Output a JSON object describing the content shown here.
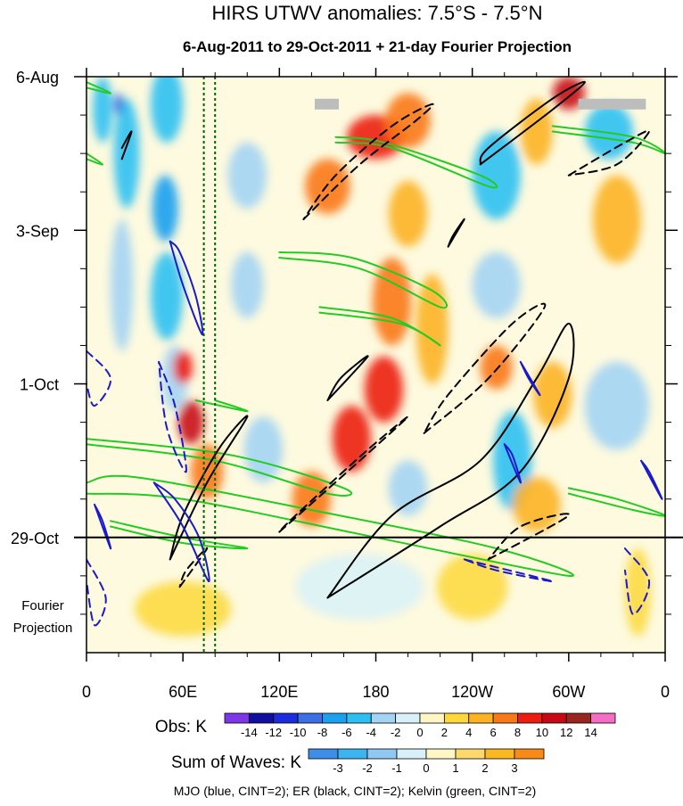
{
  "chart_data": {
    "type": "heatmap",
    "title": "HIRS UTWV anomalies: 7.5°S - 7.5°N",
    "subtitle": "6-Aug-2011 to 29-Oct-2011 + 21-day Fourier Projection",
    "x_ticks": [
      "0",
      "60E",
      "120E",
      "180",
      "120W",
      "60W",
      "0"
    ],
    "x_tick_lon": [
      0,
      60,
      120,
      180,
      240,
      300,
      360
    ],
    "x_range": [
      0,
      360
    ],
    "y_ticks": [
      {
        "label": "6-Aug",
        "day": 0
      },
      {
        "label": "3-Sep",
        "day": 28
      },
      {
        "label": "1-Oct",
        "day": 56
      },
      {
        "label": "29-Oct",
        "day": 84
      }
    ],
    "y_range_days": [
      0,
      105
    ],
    "projection_label_lines": [
      "Fourier",
      "Projection"
    ],
    "reference_lines": [
      {
        "type": "vertical-dotted",
        "lon": 73,
        "color": "#006400"
      },
      {
        "type": "vertical-dotted",
        "lon": 80,
        "color": "#006400"
      },
      {
        "type": "horizontal-solid",
        "day": 84,
        "color": "#000000"
      }
    ],
    "obs_colorbar": {
      "label": "Obs: K",
      "ticks": [
        "-14",
        "-12",
        "-10",
        "-8",
        "-6",
        "-4",
        "-2",
        "0",
        "2",
        "4",
        "6",
        "8",
        "10",
        "12",
        "14"
      ],
      "colors": [
        "#7d36e8",
        "#120ea0",
        "#1c2bdc",
        "#3c6fe5",
        "#1ba0f0",
        "#2cc0f2",
        "#a4d4f4",
        "#d8f1f8",
        "#fff6c6",
        "#fdd83a",
        "#fcb223",
        "#f97818",
        "#ec1c10",
        "#c80814",
        "#9a2420",
        "#f56cc4"
      ]
    },
    "waves_colorbar": {
      "label": "Sum of Waves: K",
      "ticks": [
        "-3",
        "-2",
        "-1",
        "0",
        "1",
        "2",
        "3"
      ],
      "colors": [
        "#3c8ee8",
        "#3cb4f0",
        "#90c8f4",
        "#d8f1f8",
        "#fff6c6",
        "#fdd86a",
        "#fcb823",
        "#f98a18"
      ]
    },
    "legend_text": "MJO (blue, CINT=2); ER (black, CINT=2); Kelvin (green, CINT=2)",
    "contour_colors": {
      "mjo": "#1a1acc",
      "er": "#000000",
      "kelvin": "#22cc22"
    },
    "anomaly_patches": [
      {
        "lon": 25,
        "day": 14,
        "value": -6,
        "rl": 8,
        "rd": 10
      },
      {
        "lon": 22,
        "day": 38,
        "value": -4,
        "rl": 7,
        "rd": 12
      },
      {
        "lon": 10,
        "day": 6,
        "value": -6,
        "rl": 6,
        "rd": 6
      },
      {
        "lon": 20,
        "day": 5,
        "value": -10,
        "rl": 3,
        "rd": 2
      },
      {
        "lon": 50,
        "day": 5,
        "value": -6,
        "rl": 10,
        "rd": 7
      },
      {
        "lon": 49,
        "day": 24,
        "value": -8,
        "rl": 8,
        "rd": 6
      },
      {
        "lon": 50,
        "day": 40,
        "value": -6,
        "rl": 10,
        "rd": 8
      },
      {
        "lon": 55,
        "day": 55,
        "value": -4,
        "rl": 8,
        "rd": 6
      },
      {
        "lon": 100,
        "day": 18,
        "value": -4,
        "rl": 12,
        "rd": 6
      },
      {
        "lon": 100,
        "day": 38,
        "value": -4,
        "rl": 10,
        "rd": 6
      },
      {
        "lon": 255,
        "day": 18,
        "value": -6,
        "rl": 15,
        "rd": 8
      },
      {
        "lon": 255,
        "day": 38,
        "value": -4,
        "rl": 15,
        "rd": 6
      },
      {
        "lon": 265,
        "day": 70,
        "value": -6,
        "rl": 12,
        "rd": 9
      },
      {
        "lon": 325,
        "day": 10,
        "value": -6,
        "rl": 15,
        "rd": 5
      },
      {
        "lon": 330,
        "day": 60,
        "value": -4,
        "rl": 20,
        "rd": 8
      },
      {
        "lon": 110,
        "day": 68,
        "value": -4,
        "rl": 12,
        "rd": 6
      },
      {
        "lon": 200,
        "day": 75,
        "value": -4,
        "rl": 12,
        "rd": 5
      },
      {
        "lon": 170,
        "day": 93,
        "value": -2,
        "rl": 40,
        "rd": 6
      },
      {
        "lon": 180,
        "day": 11,
        "value": 8,
        "rl": 18,
        "rd": 4
      },
      {
        "lon": 200,
        "day": 8,
        "value": 6,
        "rl": 14,
        "rd": 5
      },
      {
        "lon": 150,
        "day": 20,
        "value": 6,
        "rl": 14,
        "rd": 5
      },
      {
        "lon": 200,
        "day": 25,
        "value": 4,
        "rl": 12,
        "rd": 6
      },
      {
        "lon": 190,
        "day": 41,
        "value": 6,
        "rl": 12,
        "rd": 8
      },
      {
        "lon": 185,
        "day": 57,
        "value": 8,
        "rl": 12,
        "rd": 6
      },
      {
        "lon": 165,
        "day": 66,
        "value": 8,
        "rl": 12,
        "rd": 6
      },
      {
        "lon": 140,
        "day": 77,
        "value": 6,
        "rl": 12,
        "rd": 5
      },
      {
        "lon": 215,
        "day": 46,
        "value": 4,
        "rl": 10,
        "rd": 10
      },
      {
        "lon": 255,
        "day": 53,
        "value": 6,
        "rl": 10,
        "rd": 4
      },
      {
        "lon": 290,
        "day": 58,
        "value": 4,
        "rl": 12,
        "rd": 6
      },
      {
        "lon": 60,
        "day": 53,
        "value": 8,
        "rl": 6,
        "rd": 3
      },
      {
        "lon": 65,
        "day": 63,
        "value": 10,
        "rl": 8,
        "rd": 4
      },
      {
        "lon": 75,
        "day": 72,
        "value": 6,
        "rl": 10,
        "rd": 5
      },
      {
        "lon": 300,
        "day": 3,
        "value": 10,
        "rl": 10,
        "rd": 3
      },
      {
        "lon": 330,
        "day": 26,
        "value": 4,
        "rl": 15,
        "rd": 8
      },
      {
        "lon": 280,
        "day": 78,
        "value": 4,
        "rl": 15,
        "rd": 5
      },
      {
        "lon": 240,
        "day": 93,
        "value": 3,
        "rl": 22,
        "rd": 6
      },
      {
        "lon": 343,
        "day": 94,
        "value": 3,
        "rl": 8,
        "rd": 8
      },
      {
        "lon": 60,
        "day": 97,
        "value": 2,
        "rl": 30,
        "rd": 5
      },
      {
        "lon": 280,
        "day": 10,
        "value": 4,
        "rl": 10,
        "rd": 6
      }
    ],
    "missing_bars": [
      {
        "lon_start": 142,
        "lon_end": 157,
        "day": 5
      },
      {
        "lon_start": 306,
        "lon_end": 348,
        "day": 5
      }
    ],
    "contours": [
      {
        "family": "kelvin",
        "dashed": false,
        "pts": [
          [
            0,
            14
          ],
          [
            10,
            16
          ],
          [
            0,
            15
          ]
        ]
      },
      {
        "family": "kelvin",
        "dashed": false,
        "pts": [
          [
            155,
            12
          ],
          [
            190,
            13
          ],
          [
            250,
            20
          ],
          [
            245,
            18
          ],
          [
            185,
            12
          ],
          [
            155,
            11
          ]
        ]
      },
      {
        "family": "kelvin",
        "dashed": false,
        "pts": [
          [
            120,
            33
          ],
          [
            170,
            35
          ],
          [
            220,
            42
          ],
          [
            215,
            39
          ],
          [
            165,
            33
          ],
          [
            120,
            32
          ]
        ]
      },
      {
        "family": "kelvin",
        "dashed": false,
        "pts": [
          [
            145,
            43
          ],
          [
            195,
            45
          ],
          [
            220,
            49
          ],
          [
            190,
            44
          ],
          [
            145,
            42
          ]
        ]
      },
      {
        "family": "kelvin",
        "dashed": false,
        "pts": [
          [
            0,
            76
          ],
          [
            60,
            77
          ],
          [
            180,
            84
          ],
          [
            300,
            91
          ],
          [
            255,
            86
          ],
          [
            140,
            79
          ],
          [
            30,
            73
          ],
          [
            0,
            74
          ]
        ]
      },
      {
        "family": "kelvin",
        "dashed": false,
        "pts": [
          [
            0,
            67
          ],
          [
            80,
            70
          ],
          [
            150,
            76
          ],
          [
            160,
            75
          ],
          [
            90,
            69
          ],
          [
            0,
            66
          ]
        ]
      },
      {
        "family": "kelvin",
        "dashed": false,
        "pts": [
          [
            15,
            82
          ],
          [
            60,
            85
          ],
          [
            100,
            86
          ],
          [
            60,
            84
          ],
          [
            15,
            81
          ]
        ]
      },
      {
        "family": "kelvin",
        "dashed": false,
        "pts": [
          [
            0,
            2
          ],
          [
            15,
            3
          ],
          [
            0,
            1
          ]
        ]
      },
      {
        "family": "kelvin",
        "dashed": false,
        "pts": [
          [
            290,
            10
          ],
          [
            340,
            12
          ],
          [
            360,
            14
          ],
          [
            340,
            11
          ],
          [
            290,
            9
          ]
        ]
      },
      {
        "family": "kelvin",
        "dashed": false,
        "pts": [
          [
            300,
            76
          ],
          [
            340,
            79
          ],
          [
            360,
            80
          ],
          [
            330,
            77
          ],
          [
            300,
            75
          ]
        ]
      },
      {
        "family": "kelvin",
        "dashed": false,
        "pts": [
          [
            68,
            59
          ],
          [
            100,
            61
          ],
          [
            80,
            59
          ]
        ]
      },
      {
        "family": "er",
        "dashed": true,
        "pts": [
          [
            135,
            26
          ],
          [
            170,
            16
          ],
          [
            205,
            8
          ],
          [
            215,
            5
          ],
          [
            190,
            9
          ],
          [
            155,
            18
          ],
          [
            135,
            26
          ]
        ]
      },
      {
        "family": "er",
        "dashed": true,
        "pts": [
          [
            300,
            18
          ],
          [
            335,
            12
          ],
          [
            350,
            10
          ],
          [
            330,
            16
          ],
          [
            300,
            18
          ]
        ]
      },
      {
        "family": "er",
        "dashed": true,
        "pts": [
          [
            210,
            65
          ],
          [
            250,
            55
          ],
          [
            285,
            42
          ],
          [
            265,
            45
          ],
          [
            225,
            58
          ],
          [
            210,
            65
          ]
        ]
      },
      {
        "family": "er",
        "dashed": true,
        "pts": [
          [
            120,
            83
          ],
          [
            170,
            70
          ],
          [
            200,
            62
          ],
          [
            175,
            68
          ],
          [
            130,
            80
          ],
          [
            120,
            83
          ]
        ]
      },
      {
        "family": "er",
        "dashed": true,
        "pts": [
          [
            250,
            88
          ],
          [
            300,
            80
          ],
          [
            270,
            82
          ],
          [
            250,
            88
          ]
        ]
      },
      {
        "family": "er",
        "dashed": true,
        "pts": [
          [
            58,
            93
          ],
          [
            75,
            86
          ],
          [
            62,
            90
          ],
          [
            58,
            93
          ]
        ]
      },
      {
        "family": "er",
        "dashed": false,
        "pts": [
          [
            245,
            16
          ],
          [
            290,
            6
          ],
          [
            310,
            1
          ],
          [
            290,
            4
          ],
          [
            250,
            13
          ],
          [
            245,
            16
          ]
        ]
      },
      {
        "family": "er",
        "dashed": false,
        "pts": [
          [
            225,
            31
          ],
          [
            235,
            26
          ],
          [
            228,
            29
          ],
          [
            225,
            31
          ]
        ]
      },
      {
        "family": "er",
        "dashed": false,
        "pts": [
          [
            150,
            59
          ],
          [
            175,
            51
          ],
          [
            158,
            55
          ],
          [
            150,
            59
          ]
        ]
      },
      {
        "family": "er",
        "dashed": false,
        "pts": [
          [
            150,
            95
          ],
          [
            220,
            82
          ],
          [
            270,
            72
          ],
          [
            300,
            55
          ],
          [
            300,
            45
          ],
          [
            280,
            55
          ],
          [
            245,
            70
          ],
          [
            190,
            80
          ],
          [
            150,
            95
          ]
        ]
      },
      {
        "family": "er",
        "dashed": false,
        "pts": [
          [
            52,
            88
          ],
          [
            75,
            74
          ],
          [
            100,
            62
          ],
          [
            82,
            68
          ],
          [
            60,
            80
          ],
          [
            52,
            88
          ]
        ]
      },
      {
        "family": "er",
        "dashed": false,
        "pts": [
          [
            22,
            15
          ],
          [
            28,
            10
          ],
          [
            22,
            13
          ]
        ]
      },
      {
        "family": "mjo",
        "dashed": false,
        "pts": [
          [
            52,
            30
          ],
          [
            60,
            38
          ],
          [
            72,
            47
          ],
          [
            68,
            40
          ],
          [
            58,
            32
          ],
          [
            52,
            30
          ]
        ]
      },
      {
        "family": "mjo",
        "dashed": false,
        "pts": [
          [
            42,
            74
          ],
          [
            60,
            82
          ],
          [
            76,
            92
          ],
          [
            70,
            84
          ],
          [
            55,
            77
          ],
          [
            42,
            74
          ]
        ]
      },
      {
        "family": "mjo",
        "dashed": false,
        "pts": [
          [
            5,
            78
          ],
          [
            15,
            86
          ],
          [
            10,
            81
          ],
          [
            5,
            78
          ]
        ]
      },
      {
        "family": "mjo",
        "dashed": false,
        "pts": [
          [
            260,
            67
          ],
          [
            270,
            74
          ],
          [
            265,
            69
          ],
          [
            260,
            67
          ]
        ]
      },
      {
        "family": "mjo",
        "dashed": false,
        "pts": [
          [
            345,
            70
          ],
          [
            358,
            77
          ],
          [
            350,
            72
          ],
          [
            345,
            70
          ]
        ]
      },
      {
        "family": "mjo",
        "dashed": true,
        "pts": [
          [
            45,
            52
          ],
          [
            55,
            60
          ],
          [
            62,
            72
          ],
          [
            50,
            64
          ],
          [
            45,
            52
          ]
        ]
      },
      {
        "family": "mjo",
        "dashed": true,
        "pts": [
          [
            0,
            88
          ],
          [
            12,
            95
          ],
          [
            5,
            100
          ],
          [
            0,
            92
          ]
        ]
      },
      {
        "family": "mjo",
        "dashed": true,
        "pts": [
          [
            335,
            86
          ],
          [
            350,
            92
          ],
          [
            340,
            98
          ],
          [
            335,
            90
          ]
        ]
      },
      {
        "family": "mjo",
        "dashed": true,
        "pts": [
          [
            235,
            88
          ],
          [
            290,
            92
          ],
          [
            255,
            90
          ],
          [
            235,
            88
          ]
        ]
      },
      {
        "family": "mjo",
        "dashed": true,
        "pts": [
          [
            0,
            50
          ],
          [
            15,
            55
          ],
          [
            5,
            60
          ],
          [
            0,
            56
          ]
        ]
      },
      {
        "family": "mjo",
        "dashed": false,
        "pts": [
          [
            270,
            52
          ],
          [
            282,
            58
          ],
          [
            275,
            55
          ],
          [
            270,
            52
          ]
        ]
      }
    ]
  }
}
